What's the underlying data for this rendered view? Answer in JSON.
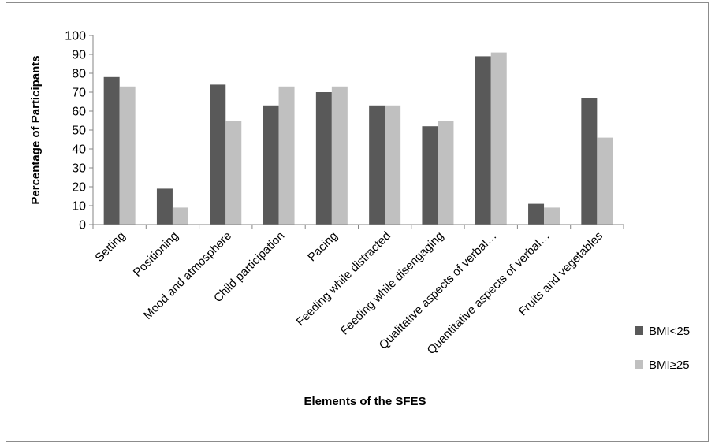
{
  "chart_data": {
    "type": "bar",
    "categories": [
      "Setting",
      "Positioning",
      "Mood and atmosphere",
      "Child participation",
      "Pacing",
      "Feeding while distracted",
      "Feeding while disengaging",
      "Qualitative aspects of verbal…",
      "Quantitative aspects of verbal…",
      "Fruits and vegetables"
    ],
    "series": [
      {
        "name": "BMI<25",
        "color": "#595959",
        "values": [
          78,
          19,
          74,
          63,
          70,
          63,
          52,
          89,
          11,
          67
        ]
      },
      {
        "name": "BMI≥25",
        "color": "#c0c0c0",
        "values": [
          73,
          9,
          55,
          73,
          73,
          63,
          55,
          91,
          9,
          46
        ]
      }
    ],
    "title": "",
    "xlabel": "Elements of the SFES",
    "ylabel": "Percentage of Participants",
    "ylim": [
      0,
      100
    ],
    "yticks": [
      "0",
      "10",
      "20",
      "30",
      "40",
      "50",
      "60",
      "70",
      "80",
      "90",
      "100"
    ],
    "grid": false,
    "legend_position": "right"
  }
}
